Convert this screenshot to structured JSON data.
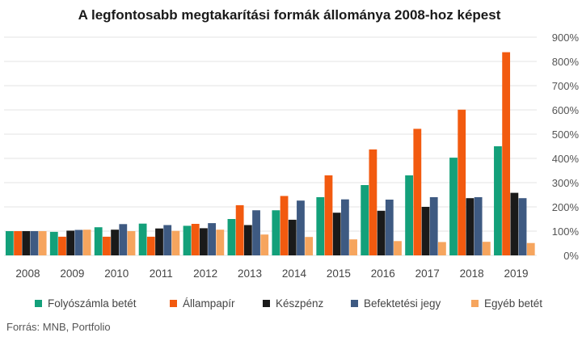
{
  "chart_data": {
    "type": "bar",
    "title": "A legfontosabb megtakarítási formák állománya 2008-hoz képest",
    "source": "Forrás: MNB, Portfolio",
    "categories": [
      "2008",
      "2009",
      "2010",
      "2011",
      "2012",
      "2013",
      "2014",
      "2015",
      "2016",
      "2017",
      "2018",
      "2019"
    ],
    "ylim": [
      0,
      900
    ],
    "yticks": [
      0,
      100,
      200,
      300,
      400,
      500,
      600,
      700,
      800,
      900
    ],
    "ytick_labels": [
      "0%",
      "100%",
      "200%",
      "300%",
      "400%",
      "500%",
      "600%",
      "700%",
      "800%",
      "900%"
    ],
    "y_axis_position": "right",
    "grid": true,
    "legend_position": "bottom",
    "series": [
      {
        "name": "Folyószámla betét",
        "color": "#13a07a",
        "values": [
          100,
          97,
          116,
          131,
          122,
          150,
          186,
          240,
          290,
          330,
          403,
          450
        ]
      },
      {
        "name": "Állampapír",
        "color": "#f25a0f",
        "values": [
          100,
          77,
          77,
          77,
          130,
          207,
          245,
          330,
          437,
          522,
          601,
          838
        ]
      },
      {
        "name": "Készpénz",
        "color": "#1a1a1a",
        "values": [
          100,
          102,
          106,
          111,
          112,
          125,
          147,
          176,
          184,
          200,
          236,
          258
        ]
      },
      {
        "name": "Befektetési jegy",
        "color": "#3e5a82",
        "values": [
          100,
          105,
          129,
          125,
          133,
          186,
          226,
          231,
          230,
          240,
          240,
          236
        ]
      },
      {
        "name": "Egyéb betét",
        "color": "#f6a55e",
        "values": [
          100,
          106,
          100,
          101,
          106,
          86,
          76,
          66,
          59,
          55,
          56,
          51
        ]
      }
    ]
  }
}
